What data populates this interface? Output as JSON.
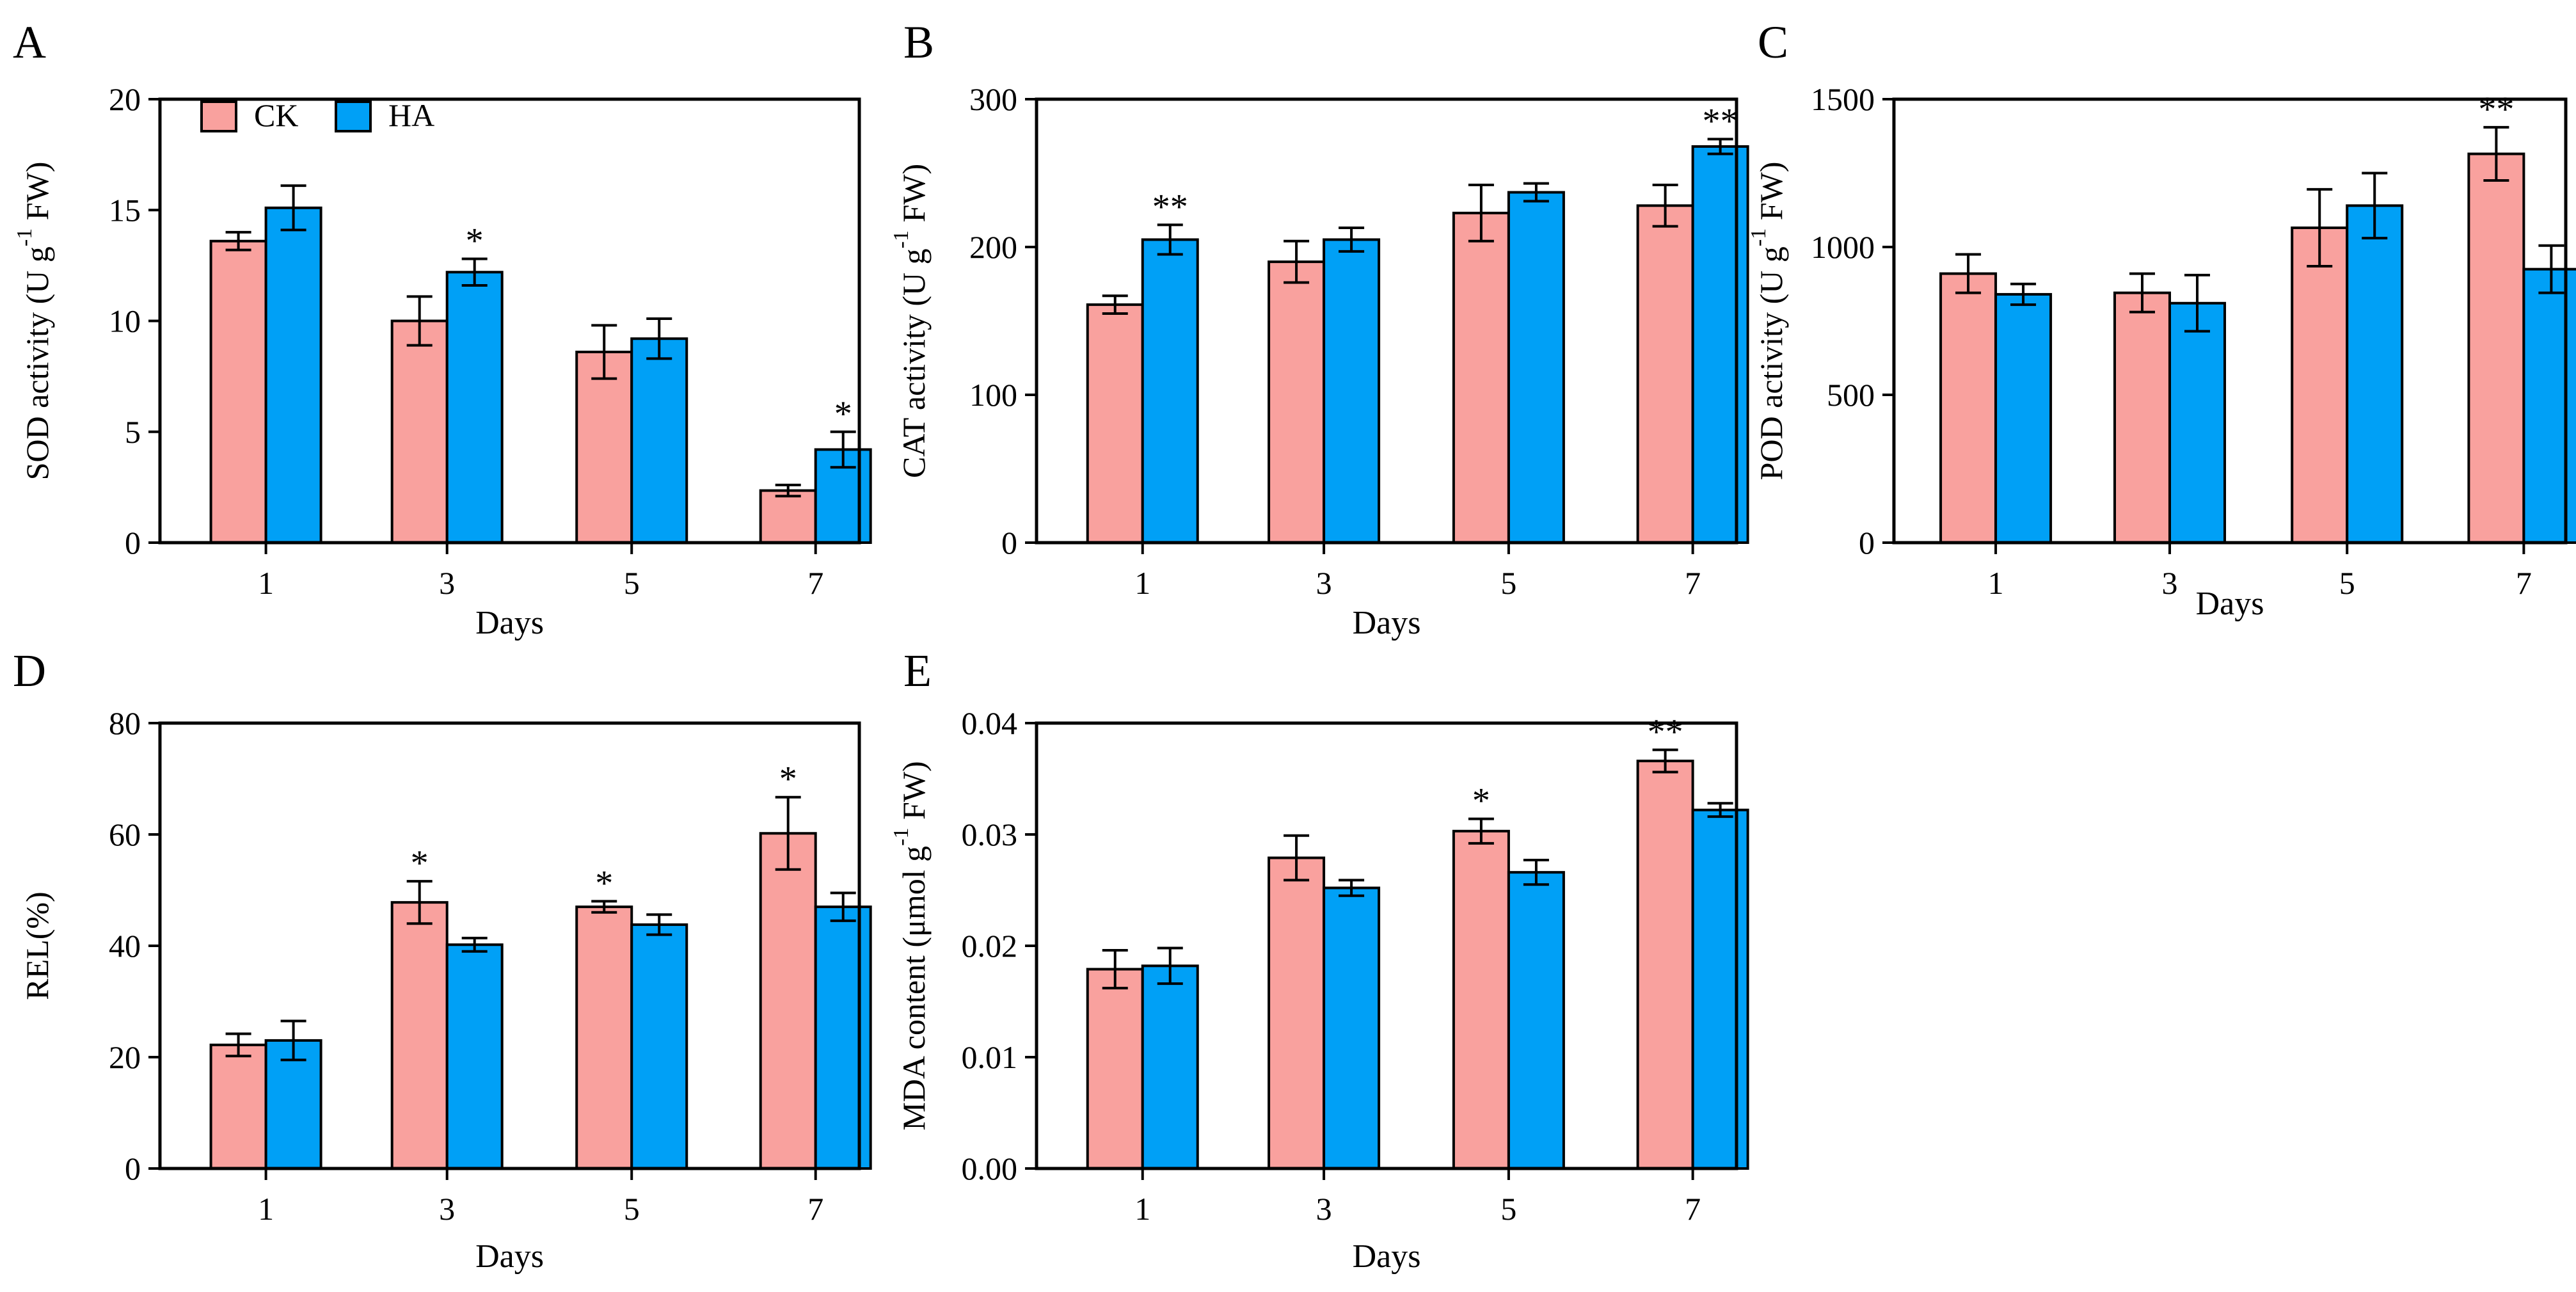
{
  "colors": {
    "ck": "#F9A19E",
    "ha": "#00A0F6",
    "axis": "#000000"
  },
  "chart_data": [
    {
      "panel": "A",
      "type": "bar",
      "categories": [
        "1",
        "3",
        "5",
        "7"
      ],
      "xlabel": "Days",
      "ylabel": "SOD activity (U g⁻¹ FW)",
      "ylim": [
        0,
        20
      ],
      "yticks": [
        0,
        5,
        10,
        15,
        20
      ],
      "ytick_labels": [
        "0",
        "5",
        "10",
        "15",
        "20"
      ],
      "legend": {
        "placement": "top-left",
        "entries": [
          "CK",
          "HA"
        ]
      },
      "series": [
        {
          "name": "CK",
          "values": [
            13.6,
            10.0,
            8.6,
            2.35
          ],
          "errors": [
            0.4,
            1.1,
            1.2,
            0.25
          ],
          "sig": [
            "",
            "",
            "",
            ""
          ]
        },
        {
          "name": "HA",
          "values": [
            15.1,
            12.2,
            9.2,
            4.2
          ],
          "errors": [
            1.0,
            0.6,
            0.9,
            0.8
          ],
          "sig": [
            "",
            "*",
            "",
            "*"
          ]
        }
      ]
    },
    {
      "panel": "B",
      "type": "bar",
      "categories": [
        "1",
        "3",
        "5",
        "7"
      ],
      "xlabel": "Days",
      "ylabel": "CAT activity (U g⁻¹ FW)",
      "ylim": [
        0,
        300
      ],
      "yticks": [
        0,
        100,
        200,
        300
      ],
      "ytick_labels": [
        "0",
        "100",
        "200",
        "300"
      ],
      "series": [
        {
          "name": "CK",
          "values": [
            161,
            190,
            223,
            228
          ],
          "errors": [
            6,
            14,
            19,
            14
          ],
          "sig": [
            "",
            "",
            "",
            ""
          ]
        },
        {
          "name": "HA",
          "values": [
            205,
            205,
            237,
            268
          ],
          "errors": [
            10,
            8,
            6,
            5
          ],
          "sig": [
            "**",
            "",
            "",
            "**"
          ]
        }
      ]
    },
    {
      "panel": "C",
      "type": "bar",
      "categories": [
        "1",
        "3",
        "5",
        "7"
      ],
      "xlabel": "Days",
      "ylabel": "POD activity (U g⁻¹ FW)",
      "ylim": [
        0,
        1500
      ],
      "yticks": [
        0,
        500,
        1000,
        1500
      ],
      "ytick_labels": [
        "0",
        "500",
        "1000",
        "1500"
      ],
      "series": [
        {
          "name": "CK",
          "values": [
            910,
            845,
            1065,
            1315
          ],
          "errors": [
            65,
            65,
            130,
            90
          ],
          "sig": [
            "",
            "",
            "",
            "**"
          ]
        },
        {
          "name": "HA",
          "values": [
            840,
            810,
            1140,
            925
          ],
          "errors": [
            35,
            95,
            110,
            80
          ],
          "sig": [
            "",
            "",
            "",
            ""
          ]
        }
      ]
    },
    {
      "panel": "D",
      "type": "bar",
      "categories": [
        "1",
        "3",
        "5",
        "7"
      ],
      "xlabel": "Days",
      "ylabel": "REL(%)",
      "ylim": [
        0,
        80
      ],
      "yticks": [
        0,
        20,
        40,
        60,
        80
      ],
      "ytick_labels": [
        "0",
        "20",
        "40",
        "60",
        "80"
      ],
      "series": [
        {
          "name": "CK",
          "values": [
            22.2,
            47.8,
            47.0,
            60.2
          ],
          "errors": [
            2.0,
            3.8,
            1.0,
            6.5
          ],
          "sig": [
            "",
            "*",
            "*",
            "*"
          ]
        },
        {
          "name": "HA",
          "values": [
            23.0,
            40.2,
            43.8,
            47.0
          ],
          "errors": [
            3.5,
            1.2,
            1.8,
            2.5
          ],
          "sig": [
            "",
            "",
            "",
            ""
          ]
        }
      ]
    },
    {
      "panel": "E",
      "type": "bar",
      "categories": [
        "1",
        "3",
        "5",
        "7"
      ],
      "xlabel": "Days",
      "ylabel": "MDA content (μmol g⁻¹ FW)",
      "ylim": [
        0,
        0.04
      ],
      "yticks": [
        0,
        0.01,
        0.02,
        0.03,
        0.04
      ],
      "ytick_labels": [
        "0.00",
        "0.01",
        "0.02",
        "0.03",
        "0.04"
      ],
      "series": [
        {
          "name": "CK",
          "values": [
            0.0179,
            0.0279,
            0.0303,
            0.0366
          ],
          "errors": [
            0.0017,
            0.002,
            0.0011,
            0.001
          ],
          "sig": [
            "",
            "",
            "*",
            "**"
          ]
        },
        {
          "name": "HA",
          "values": [
            0.0182,
            0.0252,
            0.0266,
            0.0322
          ],
          "errors": [
            0.0016,
            0.0007,
            0.0011,
            0.0006
          ],
          "sig": [
            "",
            "",
            "",
            ""
          ]
        }
      ]
    }
  ]
}
